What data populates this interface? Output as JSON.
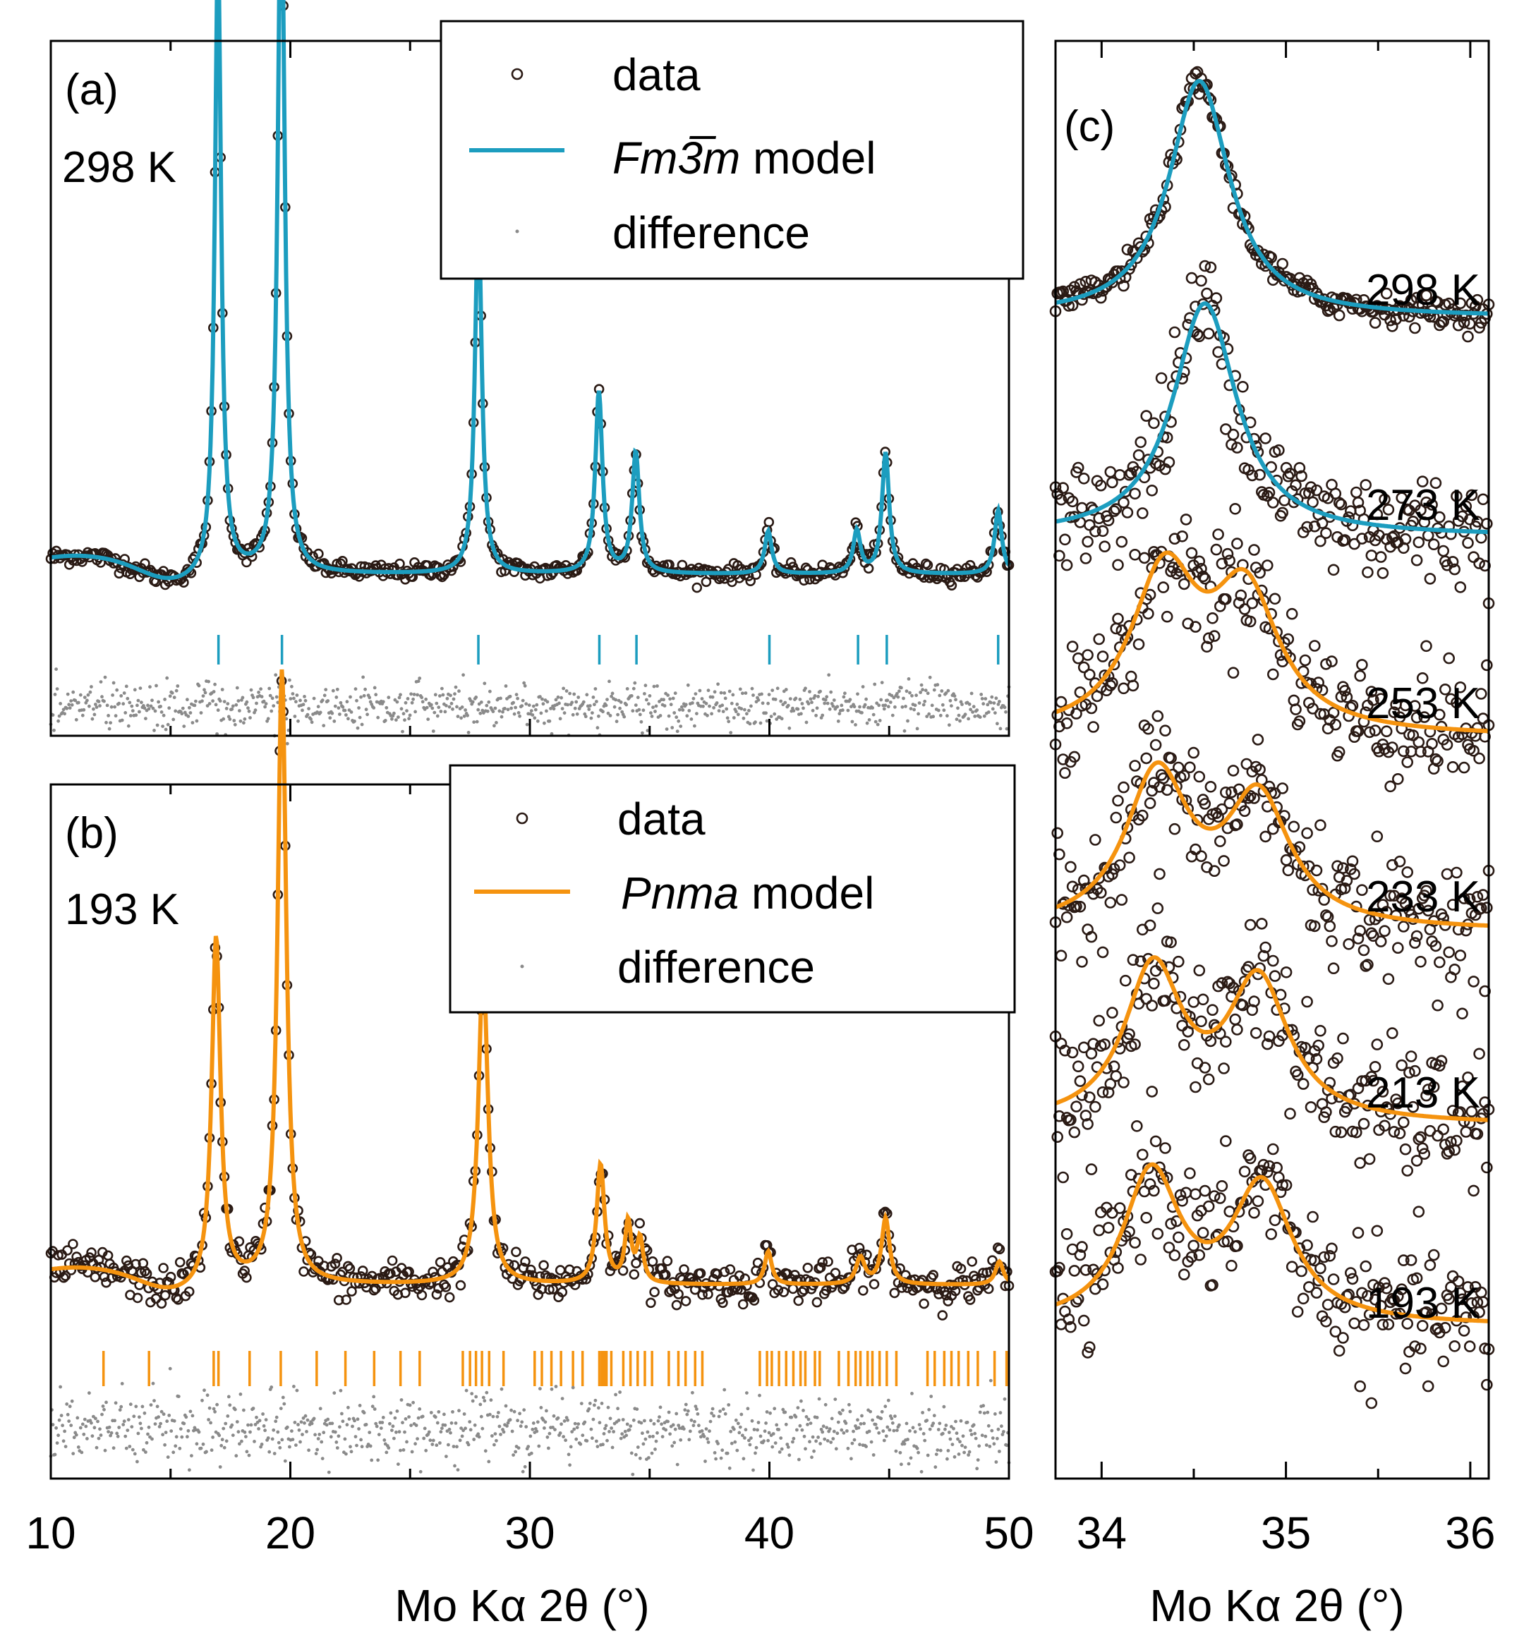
{
  "colors": {
    "data_points": "#2a1a14",
    "cubic_model": "#1c9dbf",
    "ortho_model": "#f5930f",
    "difference": "#8a8a8a",
    "axes": "#000000",
    "background": "#ffffff"
  },
  "chart_data": [
    {
      "panel": "(a)",
      "type": "line",
      "label": "(a)",
      "temperature_label": "298 K",
      "xlabel": "",
      "ylabel": "",
      "xlim": [
        10,
        50
      ],
      "xticks": [
        10,
        20,
        30,
        40,
        50
      ],
      "grid": false,
      "legend": {
        "position": "top-right",
        "entries": [
          {
            "key": "data",
            "label": "data",
            "style": "open-circle"
          },
          {
            "key": "model",
            "label_italic": "Fm3̅m",
            "label_rest": " model",
            "style": "line"
          },
          {
            "key": "difference",
            "label": "difference",
            "style": "dot"
          }
        ]
      },
      "background": 0.18,
      "peaks": [
        {
          "x": 16.98,
          "height": 1.75,
          "width": 0.16
        },
        {
          "x": 19.62,
          "height": 2.03,
          "width": 0.17
        },
        {
          "x": 27.85,
          "height": 1.02,
          "width": 0.17
        },
        {
          "x": 32.88,
          "height": 0.51,
          "width": 0.18
        },
        {
          "x": 34.42,
          "height": 0.34,
          "width": 0.18
        },
        {
          "x": 39.95,
          "height": 0.12,
          "width": 0.18
        },
        {
          "x": 43.65,
          "height": 0.12,
          "width": 0.18
        },
        {
          "x": 44.85,
          "height": 0.34,
          "width": 0.18
        },
        {
          "x": 49.55,
          "height": 0.18,
          "width": 0.18
        }
      ],
      "reflection_ticks": [
        17.0,
        19.65,
        27.85,
        32.9,
        34.45,
        40.0,
        43.7,
        44.9,
        49.55
      ],
      "noise": 0.012,
      "diff_noise": 0.05
    },
    {
      "panel": "(b)",
      "type": "line",
      "label": "(b)",
      "temperature_label": "193 K",
      "xlabel": "Mo Kα 2θ (°)",
      "ylabel": "",
      "xlim": [
        10,
        50
      ],
      "xticks": [
        10,
        20,
        30,
        40,
        50
      ],
      "xticklabels": [
        "10",
        "20",
        "30",
        "40",
        "50"
      ],
      "grid": false,
      "legend": {
        "position": "top-right",
        "entries": [
          {
            "key": "data",
            "label": "data",
            "style": "open-circle"
          },
          {
            "key": "model",
            "label_italic": "Pnma",
            "label_rest": " model",
            "style": "line"
          },
          {
            "key": "difference",
            "label": "difference",
            "style": "dot"
          }
        ]
      },
      "background": 0.12,
      "peaks": [
        {
          "x": 16.9,
          "height": 1.05,
          "width": 0.22
        },
        {
          "x": 19.65,
          "height": 1.85,
          "width": 0.22
        },
        {
          "x": 28.05,
          "height": 0.96,
          "width": 0.24
        },
        {
          "x": 32.95,
          "height": 0.36,
          "width": 0.2
        },
        {
          "x": 34.1,
          "height": 0.18,
          "width": 0.16
        },
        {
          "x": 34.6,
          "height": 0.13,
          "width": 0.16
        },
        {
          "x": 39.95,
          "height": 0.1,
          "width": 0.18
        },
        {
          "x": 43.8,
          "height": 0.08,
          "width": 0.22
        },
        {
          "x": 44.85,
          "height": 0.2,
          "width": 0.2
        },
        {
          "x": 49.6,
          "height": 0.07,
          "width": 0.2
        }
      ],
      "reflection_ticks": [
        12.2,
        14.1,
        16.8,
        17.0,
        18.3,
        19.6,
        21.1,
        22.3,
        23.5,
        24.6,
        25.4,
        27.2,
        27.5,
        27.75,
        28.0,
        28.3,
        28.9,
        30.2,
        30.5,
        30.9,
        31.3,
        31.8,
        32.2,
        32.9,
        33.0,
        33.1,
        33.2,
        33.4,
        33.9,
        34.2,
        34.5,
        34.8,
        35.1,
        35.8,
        36.2,
        36.5,
        36.9,
        37.2,
        39.6,
        39.9,
        40.1,
        40.4,
        40.7,
        41.0,
        41.3,
        41.5,
        41.9,
        42.1,
        42.9,
        43.3,
        43.6,
        43.8,
        44.1,
        44.3,
        44.6,
        44.9,
        45.3,
        46.6,
        46.9,
        47.3,
        47.6,
        47.9,
        48.3,
        48.7,
        49.4,
        49.9
      ],
      "noise": 0.03,
      "diff_noise": 0.08
    },
    {
      "panel": "(c)",
      "type": "line",
      "label": "(c)",
      "xlabel": "Mo Kα 2θ (°)",
      "ylabel": "",
      "xlim": [
        33.75,
        36.1
      ],
      "xticks": [
        34,
        35,
        36
      ],
      "xticklabels": [
        "34",
        "35",
        "36"
      ],
      "grid": false,
      "series": [
        {
          "temperature": "298 K",
          "model": "cubic",
          "peaks": [
            {
              "x": 34.53,
              "height": 1.0,
              "width": 0.2
            }
          ],
          "baseline": 0.06,
          "noise": 0.03
        },
        {
          "temperature": "273 K",
          "model": "cubic",
          "peaks": [
            {
              "x": 34.56,
              "height": 1.0,
              "width": 0.21
            }
          ],
          "baseline": 0.06,
          "noise": 0.12
        },
        {
          "temperature": "253 K",
          "model": "ortho",
          "peaks": [
            {
              "x": 34.34,
              "height": 0.74,
              "width": 0.22
            },
            {
              "x": 34.78,
              "height": 0.64,
              "width": 0.22
            }
          ],
          "baseline": 0.05,
          "noise": 0.14
        },
        {
          "temperature": "233 K",
          "model": "ortho",
          "peaks": [
            {
              "x": 34.3,
              "height": 0.72,
              "width": 0.21
            },
            {
              "x": 34.85,
              "height": 0.6,
              "width": 0.21
            }
          ],
          "baseline": 0.05,
          "noise": 0.14
        },
        {
          "temperature": "213 K",
          "model": "ortho",
          "peaks": [
            {
              "x": 34.28,
              "height": 0.72,
              "width": 0.19
            },
            {
              "x": 34.85,
              "height": 0.66,
              "width": 0.2
            }
          ],
          "baseline": 0.05,
          "noise": 0.15
        },
        {
          "temperature": "193 K",
          "model": "ortho",
          "peaks": [
            {
              "x": 34.27,
              "height": 0.7,
              "width": 0.19
            },
            {
              "x": 34.87,
              "height": 0.64,
              "width": 0.2
            }
          ],
          "baseline": 0.05,
          "noise": 0.15
        }
      ]
    }
  ]
}
